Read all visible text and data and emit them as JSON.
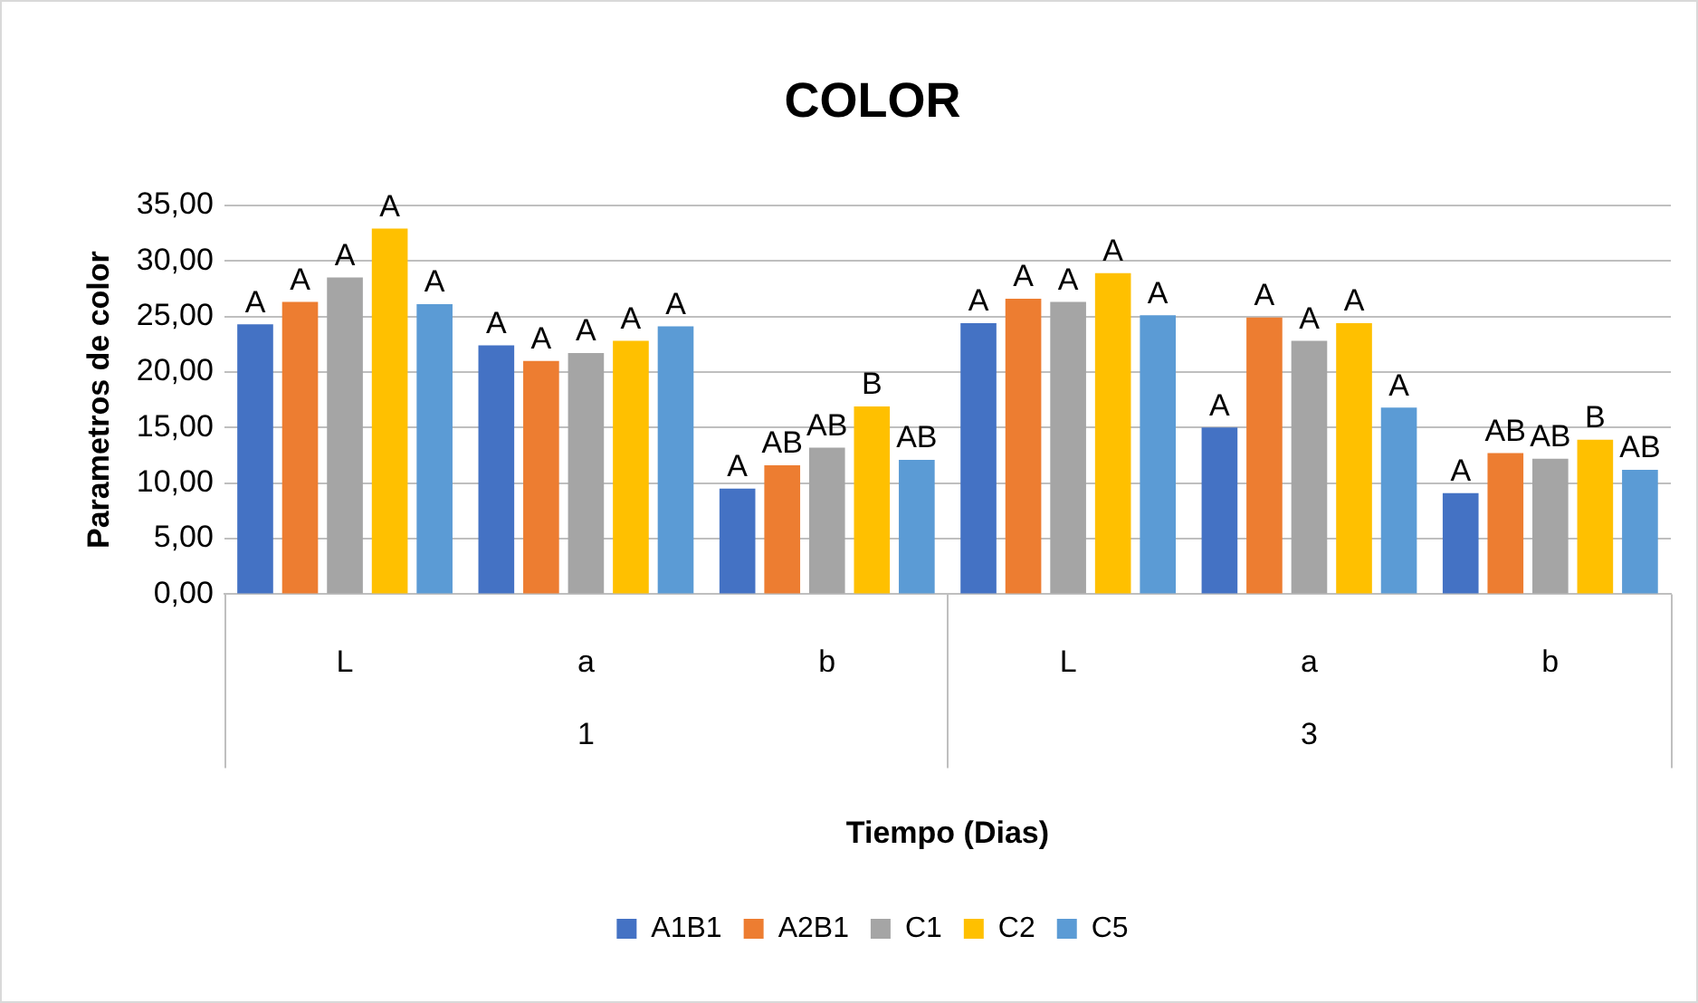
{
  "chart_data": {
    "type": "bar",
    "title": "COLOR",
    "xlabel": "Tiempo (Dias)",
    "ylabel": "Parametros de color",
    "categories": [
      "L",
      "a",
      "b",
      "L",
      "a",
      "b"
    ],
    "annotations": [
      "1",
      "3"
    ],
    "series": [
      {
        "name": "A1B1",
        "color": "#4472c4",
        "values": [
          24.3,
          22.4,
          9.5,
          24.4,
          15.0,
          9.1
        ],
        "value_labels": [
          "A",
          "A",
          "A",
          "A",
          "A",
          "A"
        ]
      },
      {
        "name": "A2B1",
        "color": "#ed7d31",
        "values": [
          26.3,
          21.0,
          11.6,
          26.6,
          24.9,
          12.7
        ],
        "value_labels": [
          "A",
          "A",
          "AB",
          "A",
          "A",
          "AB"
        ]
      },
      {
        "name": "C1",
        "color": "#a5a5a5",
        "values": [
          28.5,
          21.7,
          13.2,
          26.3,
          22.8,
          12.2
        ],
        "value_labels": [
          "A",
          "A",
          "AB",
          "A",
          "A",
          "AB"
        ]
      },
      {
        "name": "C2",
        "color": "#ffc000",
        "values": [
          32.9,
          22.8,
          16.9,
          28.9,
          24.4,
          13.9
        ],
        "value_labels": [
          "A",
          "A",
          "B",
          "A",
          "A",
          "B"
        ]
      },
      {
        "name": "C5",
        "color": "#5b9bd5",
        "values": [
          26.1,
          24.1,
          12.1,
          25.1,
          16.8,
          11.2
        ],
        "value_labels": [
          "A",
          "A",
          "AB",
          "A",
          "A",
          "AB"
        ]
      }
    ],
    "ylim": [
      0,
      35
    ],
    "yticks": [
      {
        "value": 0,
        "label": "0,00"
      },
      {
        "value": 5,
        "label": "5,00"
      },
      {
        "value": 10,
        "label": "10,00"
      },
      {
        "value": 15,
        "label": "15,00"
      },
      {
        "value": 20,
        "label": "20,00"
      },
      {
        "value": 25,
        "label": "25,00"
      },
      {
        "value": 30,
        "label": "30,00"
      },
      {
        "value": 35,
        "label": "35,00"
      }
    ],
    "grid": "y",
    "legend": "bottom"
  }
}
